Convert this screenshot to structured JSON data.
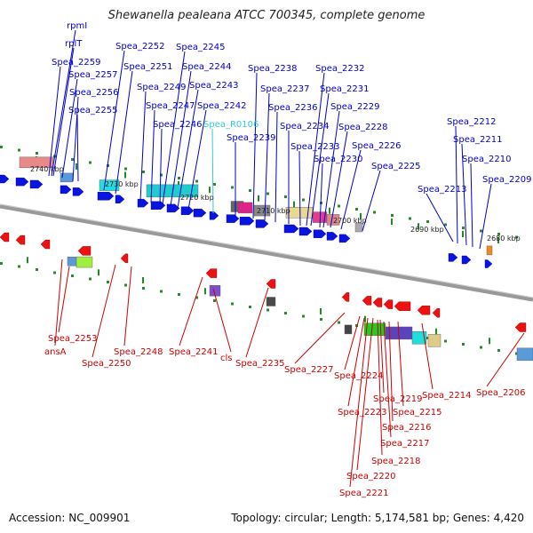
{
  "title": "Shewanella pealeana ATCC 700345, complete genome",
  "accession": "Accession: NC_009901",
  "summary": "Topology: circular; Length: 5,174,581 bp; Genes: 4,420",
  "colors": {
    "plus_label": "#0000cc",
    "minus_label": "#cc0000",
    "rna_label": "#33cccc",
    "backbone": "#888888"
  },
  "ticks": [
    "2740 kbp",
    "2730 kbp",
    "2720 kbp",
    "2710 kbp",
    "2700 kbp",
    "2690 kbp",
    "2680 kbp"
  ],
  "plus_genes": [
    "rpmI",
    "rplT",
    "Spea_2259",
    "Spea_2257",
    "Spea_2256",
    "Spea_2255",
    "Spea_2252",
    "Spea_2251",
    "Spea_2249",
    "Spea_2247",
    "Spea_2246",
    "Spea_2245",
    "Spea_2244",
    "Spea_2243",
    "Spea_2242",
    "Spea_R0106",
    "Spea_2239",
    "Spea_2238",
    "Spea_2237",
    "Spea_2236",
    "Spea_2234",
    "Spea_2233",
    "Spea_2232",
    "Spea_2231",
    "Spea_2230",
    "Spea_2229",
    "Spea_2228",
    "Spea_2226",
    "Spea_2225",
    "Spea_2213",
    "Spea_2212",
    "Spea_2211",
    "Spea_2210",
    "Spea_2209"
  ],
  "minus_genes": [
    "Spea_2253",
    "ansA",
    "Spea_2250",
    "Spea_2248",
    "Spea_2241",
    "cls",
    "Spea_2235",
    "Spea_2227",
    "Spea_2224",
    "Spea_2223",
    "Spea_2219",
    "Spea_2215",
    "Spea_2216",
    "Spea_2214",
    "Spea_2217",
    "Spea_2218",
    "Spea_2220",
    "Spea_2221",
    "Spea_2206"
  ]
}
